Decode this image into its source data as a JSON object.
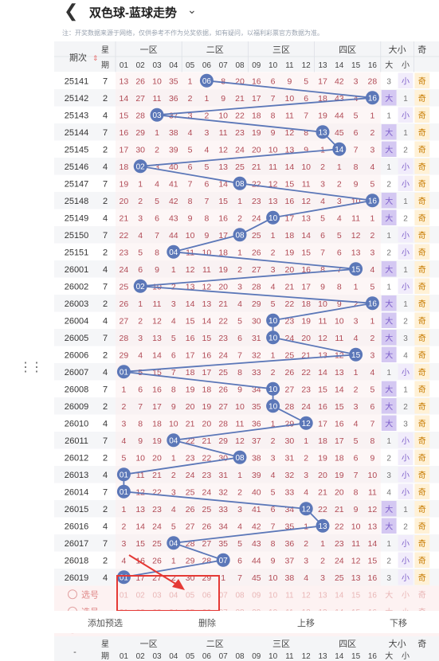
{
  "header": {
    "back_icon": "chevron-left-icon",
    "title": "双色球-蓝球走势",
    "dropdown_icon": "chevron-down-icon"
  },
  "notice": "注：开奖数据来源于网络，仅供参考不作为兑奖依据，如有疑问，以福利彩票官方数据为准。",
  "table": {
    "issue_header": "期次",
    "week_header": "星期",
    "zone_headers": [
      "一区",
      "二区",
      "三区",
      "四区",
      "大小",
      "奇"
    ],
    "number_headers": [
      "01",
      "02",
      "03",
      "04",
      "05",
      "06",
      "07",
      "08",
      "09",
      "10",
      "11",
      "12",
      "13",
      "14",
      "15",
      "16"
    ],
    "size_headers": [
      "大",
      "小"
    ],
    "odd_header": "奇",
    "rows": [
      {
        "issue": "25141",
        "week": "7",
        "blue": 6,
        "size": "小",
        "cells": [
          13,
          26,
          10,
          35,
          1,
          "06",
          8,
          20,
          16,
          6,
          9,
          5,
          17,
          42,
          3,
          28,
          3,
          "小"
        ]
      },
      {
        "issue": "25142",
        "week": "2",
        "blue": 16,
        "size": "大",
        "cells": [
          14,
          27,
          11,
          36,
          2,
          1,
          9,
          21,
          17,
          7,
          10,
          6,
          18,
          43,
          4,
          "16",
          "大",
          1
        ]
      },
      {
        "issue": "25143",
        "week": "4",
        "blue": 3,
        "size": "小",
        "cells": [
          15,
          28,
          "03",
          37,
          3,
          2,
          10,
          22,
          18,
          8,
          11,
          7,
          19,
          44,
          5,
          1,
          1,
          "小"
        ]
      },
      {
        "issue": "25144",
        "week": "7",
        "blue": 13,
        "size": "大",
        "cells": [
          16,
          29,
          1,
          38,
          4,
          3,
          11,
          23,
          19,
          9,
          12,
          8,
          "13",
          45,
          6,
          2,
          "大",
          1
        ]
      },
      {
        "issue": "25145",
        "week": "2",
        "blue": 14,
        "size": "大",
        "cells": [
          17,
          30,
          2,
          39,
          5,
          4,
          12,
          24,
          20,
          10,
          13,
          9,
          1,
          "14",
          7,
          3,
          "大",
          2
        ]
      },
      {
        "issue": "25146",
        "week": "4",
        "blue": 2,
        "size": "小",
        "cells": [
          18,
          "02",
          3,
          40,
          6,
          5,
          13,
          25,
          21,
          11,
          14,
          10,
          2,
          1,
          8,
          4,
          1,
          "小"
        ]
      },
      {
        "issue": "25147",
        "week": "7",
        "blue": 8,
        "size": "小",
        "cells": [
          19,
          1,
          4,
          41,
          7,
          6,
          14,
          "08",
          22,
          12,
          15,
          11,
          3,
          2,
          9,
          5,
          2,
          "小"
        ]
      },
      {
        "issue": "25148",
        "week": "2",
        "blue": 16,
        "size": "大",
        "cells": [
          20,
          2,
          5,
          42,
          8,
          7,
          15,
          1,
          23,
          13,
          16,
          12,
          4,
          3,
          10,
          "16",
          "大",
          1
        ]
      },
      {
        "issue": "25149",
        "week": "4",
        "blue": 10,
        "size": "大",
        "cells": [
          21,
          3,
          6,
          43,
          9,
          8,
          16,
          2,
          24,
          "10",
          17,
          13,
          5,
          4,
          11,
          1,
          "大",
          2
        ]
      },
      {
        "issue": "25150",
        "week": "7",
        "blue": 8,
        "size": "小",
        "cells": [
          22,
          4,
          7,
          44,
          10,
          9,
          17,
          "08",
          25,
          1,
          18,
          14,
          6,
          5,
          12,
          2,
          1,
          "小"
        ]
      },
      {
        "issue": "25151",
        "week": "2",
        "blue": 4,
        "size": "小",
        "cells": [
          23,
          5,
          8,
          "04",
          11,
          10,
          18,
          1,
          26,
          2,
          19,
          15,
          7,
          6,
          13,
          3,
          2,
          "小"
        ]
      },
      {
        "issue": "26001",
        "week": "4",
        "blue": 15,
        "size": "大",
        "cells": [
          24,
          6,
          9,
          1,
          12,
          11,
          19,
          2,
          27,
          3,
          20,
          16,
          8,
          7,
          "15",
          4,
          "大",
          1
        ]
      },
      {
        "issue": "26002",
        "week": "7",
        "blue": 2,
        "size": "小",
        "cells": [
          25,
          "02",
          10,
          2,
          13,
          12,
          20,
          3,
          28,
          4,
          21,
          17,
          9,
          8,
          1,
          5,
          1,
          "小"
        ]
      },
      {
        "issue": "26003",
        "week": "2",
        "blue": 16,
        "size": "大",
        "cells": [
          26,
          1,
          11,
          3,
          14,
          13,
          21,
          4,
          29,
          5,
          22,
          18,
          10,
          9,
          2,
          "16",
          "大",
          1
        ]
      },
      {
        "issue": "26004",
        "week": "4",
        "blue": 10,
        "size": "大",
        "cells": [
          27,
          2,
          12,
          4,
          15,
          14,
          22,
          5,
          30,
          "10",
          23,
          19,
          11,
          10,
          3,
          1,
          "大",
          2
        ]
      },
      {
        "issue": "26005",
        "week": "7",
        "blue": 10,
        "size": "大",
        "cells": [
          28,
          3,
          13,
          5,
          16,
          15,
          23,
          6,
          31,
          "10",
          24,
          20,
          12,
          11,
          4,
          2,
          "大",
          3
        ]
      },
      {
        "issue": "26006",
        "week": "2",
        "blue": 15,
        "size": "大",
        "cells": [
          29,
          4,
          14,
          6,
          17,
          16,
          24,
          7,
          32,
          1,
          25,
          21,
          13,
          12,
          "15",
          3,
          "大",
          4
        ]
      },
      {
        "issue": "26007",
        "week": "4",
        "blue": 1,
        "size": "小",
        "cells": [
          "01",
          5,
          15,
          7,
          18,
          17,
          25,
          8,
          33,
          2,
          26,
          22,
          14,
          13,
          1,
          4,
          1,
          "小"
        ]
      },
      {
        "issue": "26008",
        "week": "7",
        "blue": 10,
        "size": "大",
        "cells": [
          1,
          6,
          16,
          8,
          19,
          18,
          26,
          9,
          34,
          "10",
          27,
          23,
          15,
          14,
          2,
          5,
          "大",
          1
        ]
      },
      {
        "issue": "26009",
        "week": "2",
        "blue": 10,
        "size": "大",
        "cells": [
          2,
          7,
          17,
          9,
          20,
          19,
          27,
          10,
          35,
          "10",
          28,
          24,
          16,
          15,
          3,
          6,
          "大",
          2
        ]
      },
      {
        "issue": "26010",
        "week": "4",
        "blue": 12,
        "size": "大",
        "cells": [
          3,
          8,
          18,
          10,
          21,
          20,
          28,
          11,
          36,
          1,
          29,
          "12",
          17,
          16,
          4,
          7,
          "大",
          3
        ]
      },
      {
        "issue": "26011",
        "week": "7",
        "blue": 4,
        "size": "小",
        "cells": [
          4,
          9,
          19,
          "04",
          22,
          21,
          29,
          12,
          37,
          2,
          30,
          1,
          18,
          17,
          5,
          8,
          1,
          "小"
        ]
      },
      {
        "issue": "26012",
        "week": "2",
        "blue": 8,
        "size": "小",
        "cells": [
          5,
          10,
          20,
          1,
          23,
          22,
          30,
          "08",
          38,
          3,
          31,
          2,
          19,
          18,
          6,
          9,
          2,
          "小"
        ]
      },
      {
        "issue": "26013",
        "week": "4",
        "blue": 1,
        "size": "小",
        "cells": [
          "01",
          11,
          21,
          2,
          24,
          23,
          31,
          1,
          39,
          4,
          32,
          3,
          20,
          19,
          7,
          10,
          3,
          "小"
        ]
      },
      {
        "issue": "26014",
        "week": "7",
        "blue": 1,
        "size": "小",
        "cells": [
          "01",
          12,
          22,
          3,
          25,
          24,
          32,
          2,
          40,
          5,
          33,
          4,
          21,
          20,
          8,
          11,
          4,
          "小"
        ]
      },
      {
        "issue": "26015",
        "week": "2",
        "blue": 12,
        "size": "大",
        "cells": [
          1,
          13,
          23,
          4,
          26,
          25,
          33,
          3,
          41,
          6,
          34,
          "12",
          22,
          21,
          9,
          12,
          "大",
          1
        ]
      },
      {
        "issue": "26016",
        "week": "4",
        "blue": 13,
        "size": "大",
        "cells": [
          2,
          14,
          24,
          5,
          27,
          26,
          34,
          4,
          42,
          7,
          35,
          1,
          "13",
          22,
          10,
          13,
          "大",
          2
        ]
      },
      {
        "issue": "26017",
        "week": "7",
        "blue": 4,
        "size": "小",
        "cells": [
          3,
          15,
          25,
          "04",
          28,
          27,
          35,
          5,
          43,
          8,
          36,
          2,
          1,
          23,
          11,
          14,
          1,
          "小"
        ]
      },
      {
        "issue": "26018",
        "week": "2",
        "blue": 7,
        "size": "小",
        "cells": [
          4,
          16,
          26,
          1,
          29,
          28,
          "07",
          6,
          44,
          9,
          37,
          3,
          2,
          24,
          12,
          15,
          2,
          "小"
        ]
      },
      {
        "issue": "26019",
        "week": "4",
        "blue": 1,
        "size": "小",
        "cells": [
          "01",
          17,
          27,
          2,
          30,
          29,
          1,
          7,
          45,
          10,
          38,
          4,
          3,
          25,
          13,
          16,
          3,
          "小"
        ]
      }
    ],
    "select_rows": [
      {
        "label": "选号"
      },
      {
        "label": "选号"
      },
      {
        "label": "选号"
      }
    ]
  },
  "actions": {
    "add_preselect": "添加预选",
    "delete": "删除",
    "move_up": "上移",
    "move_down": "下移"
  },
  "colors": {
    "blue_ball": "#5b77b8",
    "highlight_box": "#e53935",
    "arrow": "#e53935",
    "even_row": "#ffffff",
    "odd_row": "#f5f6f8",
    "zone_shade": "#fbeeee",
    "big_cell": "#d4c8f2",
    "small_cell": "#f1ecfb",
    "odd_cell": "#fff1d6"
  }
}
